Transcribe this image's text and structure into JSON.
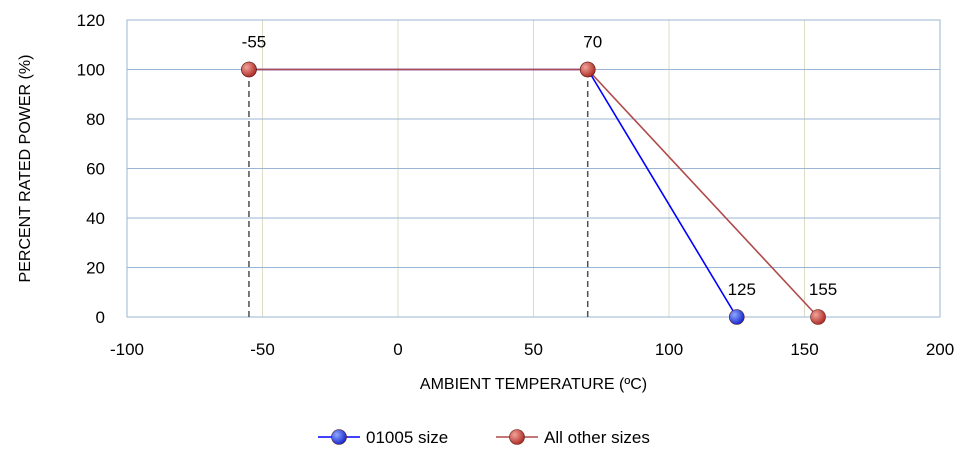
{
  "chart_data": {
    "type": "scatter",
    "title": "",
    "xlabel": "AMBIENT TEMPERATURE (ºC)",
    "ylabel": "PERCENT RATED POWER (%)",
    "xlim": [
      -100,
      200
    ],
    "ylim": [
      0,
      120
    ],
    "x_ticks": [
      "-100",
      "-50",
      "0",
      "50",
      "100",
      "150",
      "200"
    ],
    "y_ticks": [
      "0",
      "20",
      "40",
      "60",
      "80",
      "100",
      "120"
    ],
    "grid": true,
    "legend_position": "bottom",
    "series": [
      {
        "name": "01005 size",
        "color": "#0000ff",
        "marker_color": "#2a3cdc",
        "points": [
          {
            "x": -55,
            "y": 100
          },
          {
            "x": 70,
            "y": 100
          },
          {
            "x": 125,
            "y": 0
          }
        ]
      },
      {
        "name": "All other sizes",
        "color": "#b04a4a",
        "marker_color": "#c0392b",
        "points": [
          {
            "x": -55,
            "y": 100
          },
          {
            "x": 70,
            "y": 100
          },
          {
            "x": 155,
            "y": 0
          }
        ]
      }
    ],
    "data_labels": [
      {
        "text": "-55",
        "x": -55,
        "y": 100
      },
      {
        "text": "70",
        "x": 70,
        "y": 100
      },
      {
        "text": "125",
        "x": 125,
        "y": 0
      },
      {
        "text": "155",
        "x": 155,
        "y": 0
      }
    ],
    "reference_lines": [
      {
        "x": -55,
        "from_y": 0,
        "to_y": 100
      },
      {
        "x": 70,
        "from_y": 0,
        "to_y": 100
      }
    ]
  }
}
